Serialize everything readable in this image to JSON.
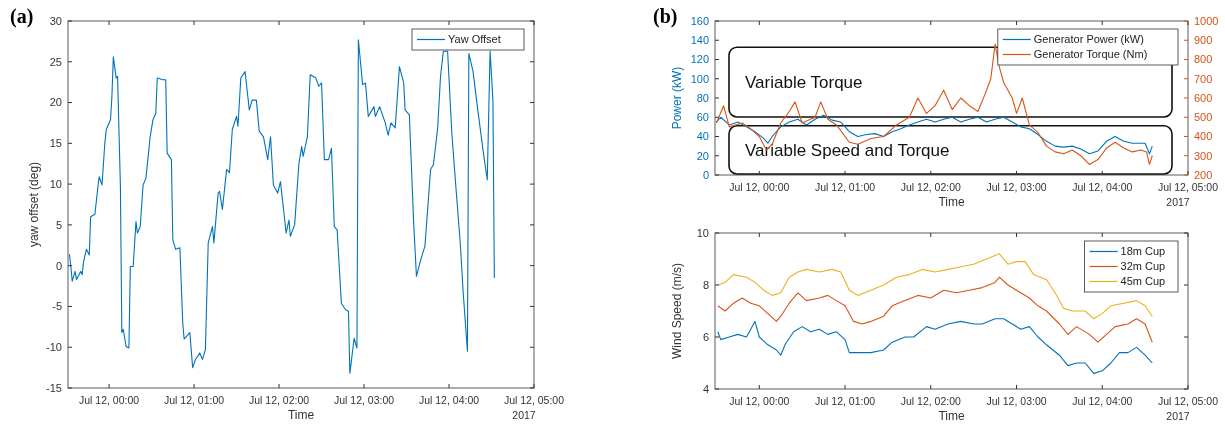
{
  "chart_data": [
    {
      "type": "line",
      "title": "(a)",
      "xlabel": "Time",
      "ylabel": "yaw offset (deg)",
      "annotations": [
        "2017"
      ],
      "xlim": [
        "2017-07-11T23:31",
        "2017-07-12T05:00"
      ],
      "xticks": [
        {
          "value": "2017-07-12T00:00",
          "label": "Jul 12, 00:00"
        },
        {
          "value": "2017-07-12T01:00",
          "label": "Jul 12, 01:00"
        },
        {
          "value": "2017-07-12T02:00",
          "label": "Jul 12, 02:00"
        },
        {
          "value": "2017-07-12T03:00",
          "label": "Jul 12, 03:00"
        },
        {
          "value": "2017-07-12T04:00",
          "label": "Jul 12, 04:00"
        },
        {
          "value": "2017-07-12T05:00",
          "label": "Jul 12, 05:00"
        }
      ],
      "ylim": [
        -15,
        30
      ],
      "yticks": [
        -15,
        -10,
        -5,
        0,
        5,
        10,
        15,
        20,
        25,
        30
      ],
      "legend": "top right",
      "series": [
        {
          "name": "Yaw Offset",
          "color": "#0072bd",
          "x": [
            "2017-07-11T23:32",
            "2017-07-11T23:33",
            "2017-07-11T23:34",
            "2017-07-11T23:36",
            "2017-07-11T23:37",
            "2017-07-11T23:40",
            "2017-07-11T23:41",
            "2017-07-11T23:42",
            "2017-07-11T23:44",
            "2017-07-11T23:46",
            "2017-07-11T23:47",
            "2017-07-11T23:50",
            "2017-07-11T23:52",
            "2017-07-11T23:53",
            "2017-07-11T23:55",
            "2017-07-11T23:57",
            "2017-07-11T23:58",
            "2017-07-12T00:01",
            "2017-07-12T00:02",
            "2017-07-12T00:03",
            "2017-07-12T00:05",
            "2017-07-12T00:06",
            "2017-07-12T00:08",
            "2017-07-12T00:09",
            "2017-07-12T00:10",
            "2017-07-12T00:12",
            "2017-07-12T00:14",
            "2017-07-12T00:15",
            "2017-07-12T00:17",
            "2017-07-12T00:19",
            "2017-07-12T00:20",
            "2017-07-12T00:22",
            "2017-07-12T00:24",
            "2017-07-12T00:26",
            "2017-07-12T00:29",
            "2017-07-12T00:31",
            "2017-07-12T00:33",
            "2017-07-12T00:34",
            "2017-07-12T00:38",
            "2017-07-12T00:40",
            "2017-07-12T00:41",
            "2017-07-12T00:44",
            "2017-07-12T00:45",
            "2017-07-12T00:47",
            "2017-07-12T00:50",
            "2017-07-12T00:52",
            "2017-07-12T00:53",
            "2017-07-12T00:57",
            "2017-07-12T00:59",
            "2017-07-12T01:01",
            "2017-07-12T01:04",
            "2017-07-12T01:06",
            "2017-07-12T01:08",
            "2017-07-12T01:10",
            "2017-07-12T01:13",
            "2017-07-12T01:14",
            "2017-07-12T01:17",
            "2017-07-12T01:18",
            "2017-07-12T01:20",
            "2017-07-12T01:23",
            "2017-07-12T01:25",
            "2017-07-12T01:27",
            "2017-07-12T01:30",
            "2017-07-12T01:31",
            "2017-07-12T01:33",
            "2017-07-12T01:36",
            "2017-07-12T01:39",
            "2017-07-12T01:41",
            "2017-07-12T01:44",
            "2017-07-12T01:46",
            "2017-07-12T01:49",
            "2017-07-12T01:52",
            "2017-07-12T01:54",
            "2017-07-12T01:56",
            "2017-07-12T01:59",
            "2017-07-12T02:01",
            "2017-07-12T02:04",
            "2017-07-12T02:05",
            "2017-07-12T02:07",
            "2017-07-12T02:08",
            "2017-07-12T02:11",
            "2017-07-12T02:14",
            "2017-07-12T02:16",
            "2017-07-12T02:17",
            "2017-07-12T02:20",
            "2017-07-12T02:22",
            "2017-07-12T02:26",
            "2017-07-12T02:28",
            "2017-07-12T02:30",
            "2017-07-12T02:32",
            "2017-07-12T02:35",
            "2017-07-12T02:37",
            "2017-07-12T02:39",
            "2017-07-12T02:41",
            "2017-07-12T02:44",
            "2017-07-12T02:47",
            "2017-07-12T02:49",
            "2017-07-12T02:50",
            "2017-07-12T02:53",
            "2017-07-12T02:55",
            "2017-07-12T02:56",
            "2017-07-12T02:59",
            "2017-07-12T03:01",
            "2017-07-12T03:03",
            "2017-07-12T03:07",
            "2017-07-12T03:08",
            "2017-07-12T03:11",
            "2017-07-12T03:15",
            "2017-07-12T03:17",
            "2017-07-12T03:19",
            "2017-07-12T03:22",
            "2017-07-12T03:25",
            "2017-07-12T03:28",
            "2017-07-12T03:29",
            "2017-07-12T03:32",
            "2017-07-12T03:35",
            "2017-07-12T03:37",
            "2017-07-12T03:40",
            "2017-07-12T03:43",
            "2017-07-12T03:47",
            "2017-07-12T03:49",
            "2017-07-12T03:52",
            "2017-07-12T03:54",
            "2017-07-12T03:56",
            "2017-07-12T03:58",
            "2017-07-12T03:59",
            "2017-07-12T04:02",
            "2017-07-12T04:05",
            "2017-07-12T04:08",
            "2017-07-12T04:10",
            "2017-07-12T04:13",
            "2017-07-12T04:14",
            "2017-07-12T04:17",
            "2017-07-12T04:20",
            "2017-07-12T04:24",
            "2017-07-12T04:27",
            "2017-07-12T04:29",
            "2017-07-12T04:31",
            "2017-07-12T04:32"
          ],
          "values": [
            1.4,
            -0.1,
            -1.9,
            -0.7,
            -1.7,
            -0.7,
            -1.1,
            0.5,
            2.0,
            1.3,
            6.0,
            6.3,
            9.5,
            10.9,
            9.9,
            15.0,
            16.7,
            17.9,
            20.7,
            25.6,
            23.0,
            23.2,
            9.7,
            -8.2,
            -7.8,
            -9.9,
            -10.1,
            -0.1,
            -0.1,
            5.4,
            4.0,
            4.8,
            9.9,
            10.7,
            15.8,
            17.9,
            18.7,
            23.0,
            22.8,
            22.8,
            13.8,
            13.0,
            3.2,
            2.0,
            2.2,
            -7.0,
            -9.0,
            -8.2,
            -12.5,
            -11.5,
            -10.7,
            -11.5,
            -10.3,
            2.8,
            4.8,
            2.8,
            8.9,
            9.1,
            6.9,
            11.8,
            11.4,
            16.7,
            18.3,
            17.1,
            23.0,
            23.8,
            19.1,
            20.3,
            20.3,
            16.5,
            15.8,
            13.0,
            15.8,
            9.9,
            8.9,
            10.3,
            5.6,
            4.0,
            5.6,
            3.6,
            5.0,
            12.5,
            14.6,
            13.4,
            15.8,
            23.4,
            23.0,
            22.0,
            22.4,
            13.0,
            13.0,
            14.4,
            4.8,
            4.4,
            -4.6,
            -5.4,
            -5.6,
            -13.2,
            -8.9,
            -10.1,
            27.7,
            22.2,
            22.4,
            18.3,
            19.5,
            18.3,
            19.5,
            17.5,
            16.0,
            17.5,
            16.9,
            24.4,
            22.4,
            19.1,
            18.5,
            5.4,
            -1.3,
            0.7,
            2.4,
            11.8,
            12.4,
            16.9,
            23.2,
            26.3,
            26.3,
            26.3,
            16.2,
            9.3,
            2.6,
            -3.3,
            -10.5,
            26.0,
            23.8,
            19.5,
            14.2,
            10.5,
            26.3,
            20.3,
            -1.5
          ]
        }
      ]
    },
    {
      "type": "line",
      "title": "(b)",
      "xlabel": "Time",
      "ylabel": "Power (kW)",
      "annotations": [
        "2017",
        "Variable Torque",
        "Variable Speed and Torque"
      ],
      "xlim": [
        "2017-07-11T23:29",
        "2017-07-12T05:00"
      ],
      "xticks": [
        {
          "value": "2017-07-12T00:00",
          "label": "Jul 12, 00:00"
        },
        {
          "value": "2017-07-12T01:00",
          "label": "Jul 12, 01:00"
        },
        {
          "value": "2017-07-12T02:00",
          "label": "Jul 12, 02:00"
        },
        {
          "value": "2017-07-12T03:00",
          "label": "Jul 12, 03:00"
        },
        {
          "value": "2017-07-12T04:00",
          "label": "Jul 12, 04:00"
        },
        {
          "value": "2017-07-12T05:00",
          "label": "Jul 12, 05:00"
        }
      ],
      "ylim": [
        0,
        160
      ],
      "yticks": [
        0,
        20,
        40,
        60,
        80,
        100,
        120,
        140,
        160
      ],
      "y2lim": [
        200,
        1000
      ],
      "y2ticks": [
        200,
        300,
        400,
        500,
        600,
        700,
        800,
        900,
        1000
      ],
      "legend": "top right",
      "series": [
        {
          "name": "Generator Power (kW)",
          "color": "#0072bd",
          "x": [
            "2017-07-11T23:30",
            "2017-07-11T23:33",
            "2017-07-11T23:39",
            "2017-07-11T23:45",
            "2017-07-11T23:51",
            "2017-07-11T23:57",
            "2017-07-12T00:03",
            "2017-07-12T00:06",
            "2017-07-12T00:09",
            "2017-07-12T00:15",
            "2017-07-12T00:21",
            "2017-07-12T00:27",
            "2017-07-12T00:33",
            "2017-07-12T00:39",
            "2017-07-12T00:45",
            "2017-07-12T00:51",
            "2017-07-12T00:57",
            "2017-07-12T01:03",
            "2017-07-12T01:09",
            "2017-07-12T01:15",
            "2017-07-12T01:21",
            "2017-07-12T01:27",
            "2017-07-12T01:33",
            "2017-07-12T01:39",
            "2017-07-12T01:45",
            "2017-07-12T01:51",
            "2017-07-12T01:57",
            "2017-07-12T02:03",
            "2017-07-12T02:09",
            "2017-07-12T02:15",
            "2017-07-12T02:21",
            "2017-07-12T02:27",
            "2017-07-12T02:33",
            "2017-07-12T02:39",
            "2017-07-12T02:45",
            "2017-07-12T02:51",
            "2017-07-12T02:57",
            "2017-07-12T03:03",
            "2017-07-12T03:09",
            "2017-07-12T03:15",
            "2017-07-12T03:21",
            "2017-07-12T03:27",
            "2017-07-12T03:33",
            "2017-07-12T03:39",
            "2017-07-12T03:45",
            "2017-07-12T03:51",
            "2017-07-12T03:57",
            "2017-07-12T04:03",
            "2017-07-12T04:09",
            "2017-07-12T04:15",
            "2017-07-12T04:21",
            "2017-07-12T04:27",
            "2017-07-12T04:30",
            "2017-07-12T04:33",
            "2017-07-12T04:35"
          ],
          "values": [
            55,
            60,
            52,
            55,
            50,
            45,
            38,
            33,
            40,
            50,
            55,
            58,
            52,
            58,
            62,
            57,
            55,
            45,
            40,
            42,
            43,
            40,
            45,
            48,
            52,
            55,
            58,
            55,
            58,
            60,
            55,
            58,
            60,
            55,
            58,
            60,
            55,
            50,
            48,
            42,
            35,
            30,
            29,
            30,
            27,
            22,
            25,
            35,
            40,
            35,
            33,
            33,
            33,
            22,
            30
          ]
        },
        {
          "name": "Generator Torque (Nm)",
          "color": "#d95319",
          "axis": "y2",
          "x": [
            "2017-07-11T23:30",
            "2017-07-11T23:35",
            "2017-07-11T23:39",
            "2017-07-11T23:48",
            "2017-07-11T23:54",
            "2017-07-12T00:00",
            "2017-07-12T00:05",
            "2017-07-12T00:09",
            "2017-07-12T00:15",
            "2017-07-12T00:21",
            "2017-07-12T00:25",
            "2017-07-12T00:30",
            "2017-07-12T00:39",
            "2017-07-12T00:43",
            "2017-07-12T00:48",
            "2017-07-12T00:54",
            "2017-07-12T01:03",
            "2017-07-12T01:09",
            "2017-07-12T01:18",
            "2017-07-12T01:27",
            "2017-07-12T01:36",
            "2017-07-12T01:45",
            "2017-07-12T01:51",
            "2017-07-12T01:57",
            "2017-07-12T02:03",
            "2017-07-12T02:09",
            "2017-07-12T02:15",
            "2017-07-12T02:21",
            "2017-07-12T02:27",
            "2017-07-12T02:33",
            "2017-07-12T02:38",
            "2017-07-12T02:42",
            "2017-07-12T02:45",
            "2017-07-12T02:48",
            "2017-07-12T02:51",
            "2017-07-12T02:57",
            "2017-07-12T03:00",
            "2017-07-12T03:04",
            "2017-07-12T03:09",
            "2017-07-12T03:15",
            "2017-07-12T03:21",
            "2017-07-12T03:27",
            "2017-07-12T03:33",
            "2017-07-12T03:39",
            "2017-07-12T03:45",
            "2017-07-12T03:51",
            "2017-07-12T03:57",
            "2017-07-12T04:03",
            "2017-07-12T04:09",
            "2017-07-12T04:15",
            "2017-07-12T04:21",
            "2017-07-12T04:27",
            "2017-07-12T04:31",
            "2017-07-12T04:33",
            "2017-07-12T04:35"
          ],
          "values": [
            470,
            560,
            450,
            470,
            440,
            400,
            330,
            360,
            470,
            530,
            580,
            470,
            500,
            580,
            490,
            460,
            370,
            360,
            390,
            400,
            460,
            500,
            600,
            520,
            560,
            640,
            540,
            600,
            560,
            530,
            620,
            700,
            880,
            760,
            680,
            600,
            520,
            600,
            460,
            420,
            350,
            320,
            310,
            330,
            300,
            255,
            280,
            340,
            370,
            340,
            320,
            330,
            320,
            255,
            300
          ]
        }
      ]
    },
    {
      "type": "line",
      "xlabel": "Time",
      "ylabel": "Wind Speed (m/s)",
      "annotations": [
        "2017"
      ],
      "xlim": [
        "2017-07-11T23:29",
        "2017-07-12T05:00"
      ],
      "xticks": [
        {
          "value": "2017-07-12T00:00",
          "label": "Jul 12, 00:00"
        },
        {
          "value": "2017-07-12T01:00",
          "label": "Jul 12, 01:00"
        },
        {
          "value": "2017-07-12T02:00",
          "label": "Jul 12, 02:00"
        },
        {
          "value": "2017-07-12T03:00",
          "label": "Jul 12, 03:00"
        },
        {
          "value": "2017-07-12T04:00",
          "label": "Jul 12, 04:00"
        },
        {
          "value": "2017-07-12T05:00",
          "label": "Jul 12, 05:00"
        }
      ],
      "ylim": [
        4,
        10
      ],
      "yticks": [
        4,
        6,
        8,
        10
      ],
      "legend": "top right",
      "series": [
        {
          "name": "18m Cup",
          "color": "#0072bd",
          "x": [
            "2017-07-11T23:31",
            "2017-07-11T23:33",
            "2017-07-11T23:39",
            "2017-07-11T23:45",
            "2017-07-11T23:51",
            "2017-07-11T23:57",
            "2017-07-12T00:00",
            "2017-07-12T00:06",
            "2017-07-12T00:12",
            "2017-07-12T00:15",
            "2017-07-12T00:18",
            "2017-07-12T00:24",
            "2017-07-12T00:30",
            "2017-07-12T00:36",
            "2017-07-12T00:42",
            "2017-07-12T00:48",
            "2017-07-12T00:54",
            "2017-07-12T01:00",
            "2017-07-12T01:03",
            "2017-07-12T01:09",
            "2017-07-12T01:18",
            "2017-07-12T01:27",
            "2017-07-12T01:33",
            "2017-07-12T01:42",
            "2017-07-12T01:48",
            "2017-07-12T01:57",
            "2017-07-12T02:03",
            "2017-07-12T02:12",
            "2017-07-12T02:21",
            "2017-07-12T02:30",
            "2017-07-12T02:36",
            "2017-07-12T02:45",
            "2017-07-12T02:51",
            "2017-07-12T02:57",
            "2017-07-12T03:03",
            "2017-07-12T03:09",
            "2017-07-12T03:15",
            "2017-07-12T03:21",
            "2017-07-12T03:30",
            "2017-07-12T03:36",
            "2017-07-12T03:42",
            "2017-07-12T03:48",
            "2017-07-12T03:51",
            "2017-07-12T03:54",
            "2017-07-12T04:00",
            "2017-07-12T04:06",
            "2017-07-12T04:12",
            "2017-07-12T04:18",
            "2017-07-12T04:24",
            "2017-07-12T04:30",
            "2017-07-12T04:35"
          ],
          "values": [
            6.2,
            5.9,
            6.0,
            6.1,
            6.0,
            6.6,
            6.0,
            5.7,
            5.5,
            5.3,
            5.7,
            6.2,
            6.4,
            6.2,
            6.3,
            6.1,
            6.2,
            5.9,
            5.4,
            5.4,
            5.4,
            5.5,
            5.8,
            6.0,
            6.0,
            6.4,
            6.3,
            6.5,
            6.6,
            6.5,
            6.5,
            6.7,
            6.7,
            6.5,
            6.3,
            6.4,
            6.0,
            5.7,
            5.3,
            4.9,
            5.0,
            5.0,
            4.8,
            4.6,
            4.7,
            5.0,
            5.4,
            5.4,
            5.6,
            5.3,
            5.0
          ]
        },
        {
          "name": "32m Cup",
          "color": "#d95319",
          "x": [
            "2017-07-11T23:31",
            "2017-07-11T23:36",
            "2017-07-11T23:42",
            "2017-07-11T23:48",
            "2017-07-11T23:54",
            "2017-07-12T00:00",
            "2017-07-12T00:06",
            "2017-07-12T00:12",
            "2017-07-12T00:15",
            "2017-07-12T00:21",
            "2017-07-12T00:27",
            "2017-07-12T00:33",
            "2017-07-12T00:42",
            "2017-07-12T00:48",
            "2017-07-12T00:54",
            "2017-07-12T01:00",
            "2017-07-12T01:06",
            "2017-07-12T01:12",
            "2017-07-12T01:18",
            "2017-07-12T01:27",
            "2017-07-12T01:33",
            "2017-07-12T01:42",
            "2017-07-12T01:51",
            "2017-07-12T02:00",
            "2017-07-12T02:09",
            "2017-07-12T02:18",
            "2017-07-12T02:27",
            "2017-07-12T02:36",
            "2017-07-12T02:45",
            "2017-07-12T02:48",
            "2017-07-12T02:54",
            "2017-07-12T03:00",
            "2017-07-12T03:09",
            "2017-07-12T03:15",
            "2017-07-12T03:21",
            "2017-07-12T03:30",
            "2017-07-12T03:36",
            "2017-07-12T03:42",
            "2017-07-12T03:51",
            "2017-07-12T03:57",
            "2017-07-12T04:03",
            "2017-07-12T04:09",
            "2017-07-12T04:18",
            "2017-07-12T04:24",
            "2017-07-12T04:30",
            "2017-07-12T04:35"
          ],
          "values": [
            7.2,
            7.0,
            7.3,
            7.5,
            7.3,
            7.2,
            6.9,
            6.6,
            6.8,
            7.3,
            7.7,
            7.4,
            7.5,
            7.6,
            7.4,
            7.2,
            6.6,
            6.5,
            6.6,
            6.8,
            7.2,
            7.4,
            7.6,
            7.5,
            7.8,
            7.7,
            7.8,
            7.9,
            8.1,
            8.3,
            8.0,
            7.8,
            7.5,
            7.2,
            7.0,
            6.5,
            6.1,
            6.4,
            6.1,
            5.8,
            6.1,
            6.4,
            6.5,
            6.7,
            6.5,
            5.8
          ]
        },
        {
          "name": "45m Cup",
          "color": "#edb120",
          "x": [
            "2017-07-11T23:31",
            "2017-07-11T23:36",
            "2017-07-11T23:42",
            "2017-07-11T23:51",
            "2017-07-11T23:57",
            "2017-07-12T00:03",
            "2017-07-12T00:09",
            "2017-07-12T00:15",
            "2017-07-12T00:21",
            "2017-07-12T00:27",
            "2017-07-12T00:33",
            "2017-07-12T00:42",
            "2017-07-12T00:51",
            "2017-07-12T00:57",
            "2017-07-12T01:03",
            "2017-07-12T01:09",
            "2017-07-12T01:18",
            "2017-07-12T01:27",
            "2017-07-12T01:36",
            "2017-07-12T01:45",
            "2017-07-12T01:54",
            "2017-07-12T02:03",
            "2017-07-12T02:12",
            "2017-07-12T02:21",
            "2017-07-12T02:30",
            "2017-07-12T02:39",
            "2017-07-12T02:48",
            "2017-07-12T02:54",
            "2017-07-12T03:00",
            "2017-07-12T03:06",
            "2017-07-12T03:12",
            "2017-07-12T03:21",
            "2017-07-12T03:27",
            "2017-07-12T03:33",
            "2017-07-12T03:39",
            "2017-07-12T03:48",
            "2017-07-12T03:54",
            "2017-07-12T04:00",
            "2017-07-12T04:06",
            "2017-07-12T04:15",
            "2017-07-12T04:24",
            "2017-07-12T04:30",
            "2017-07-12T04:35"
          ],
          "values": [
            8.0,
            8.1,
            8.4,
            8.3,
            8.1,
            7.8,
            7.6,
            7.7,
            8.3,
            8.5,
            8.6,
            8.5,
            8.6,
            8.5,
            7.8,
            7.6,
            7.8,
            8.0,
            8.3,
            8.4,
            8.6,
            8.5,
            8.6,
            8.7,
            8.8,
            9.0,
            9.2,
            8.8,
            8.9,
            8.9,
            8.4,
            8.2,
            7.7,
            7.1,
            7.0,
            7.0,
            6.7,
            6.9,
            7.2,
            7.3,
            7.4,
            7.2,
            6.8
          ]
        }
      ]
    }
  ]
}
